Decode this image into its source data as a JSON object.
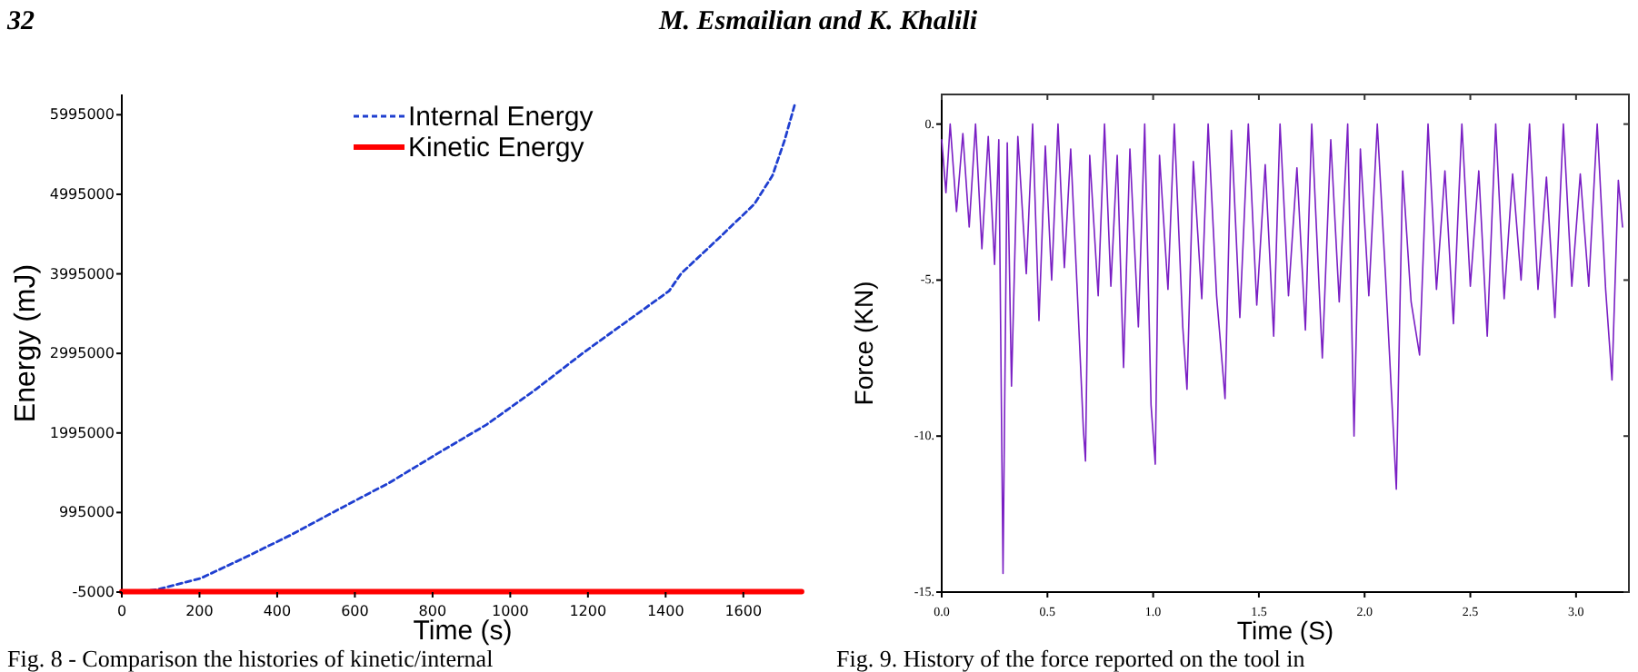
{
  "chart_data": [
    {
      "type": "line",
      "xlabel": "Time (s)",
      "ylabel": "Energy (mJ)",
      "annotations": [
        "32",
        "M. Esmailian and K. Khalili",
        "Fig. 8 - Comparison the histories of kinetic/internal"
      ],
      "xlim": [
        0,
        1755
      ],
      "xticks": [
        0,
        200,
        400,
        600,
        800,
        1000,
        1200,
        1400,
        1600
      ],
      "ylim": [
        -5000,
        6250000
      ],
      "yticks": [
        -5000,
        995000,
        1995000,
        2995000,
        3995000,
        4995000,
        5995000
      ],
      "legend": "top",
      "grid": false,
      "series": [
        {
          "name": "Internal Energy",
          "color": "#1f3fd0",
          "line_style": "dashed",
          "x": [
            50,
            94,
            204,
            313,
            438,
            564,
            689,
            814,
            939,
            1065,
            1190,
            1315,
            1409,
            1440,
            1534,
            1628,
            1675,
            1706,
            1734
          ],
          "values": [
            0,
            30000,
            170000,
            420000,
            720000,
            1050000,
            1370000,
            1740000,
            2100000,
            2540000,
            3010000,
            3450000,
            3780000,
            4000000,
            4430000,
            4870000,
            5230000,
            5670000,
            6150000
          ]
        },
        {
          "name": "Kinetic Energy",
          "color": "#ff0000",
          "line_style": "solid",
          "x": [
            0,
            1750
          ],
          "values": [
            0,
            0
          ]
        }
      ]
    },
    {
      "type": "line",
      "xlabel": "Time (S)",
      "ylabel": "Force (KN)",
      "annotations": [
        "Fig. 9. History of the force reported on the tool in"
      ],
      "xlim": [
        0,
        3.25
      ],
      "xticks": [
        {
          "value": 0,
          "label": "0.0"
        },
        {
          "value": 0.5,
          "label": "0.5"
        },
        {
          "value": 1,
          "label": "1.0"
        },
        {
          "value": 1.5,
          "label": "1.5"
        },
        {
          "value": 2,
          "label": "2.0"
        },
        {
          "value": 2.5,
          "label": "2.5"
        },
        {
          "value": 3,
          "label": "3.0"
        }
      ],
      "ylim": [
        -15,
        0.95
      ],
      "yticks": [
        {
          "value": 0,
          "label": "0."
        },
        {
          "value": -5,
          "label": "-5."
        },
        {
          "value": -10,
          "label": "-10."
        },
        {
          "value": -15,
          "label": "-15."
        }
      ],
      "legend": false,
      "grid": false,
      "series": [
        {
          "color": "#7a1fc4",
          "line_style": "solid",
          "x": [
            0,
            0.02,
            0.04,
            0.07,
            0.1,
            0.13,
            0.16,
            0.19,
            0.22,
            0.25,
            0.27,
            0.29,
            0.31,
            0.33,
            0.36,
            0.4,
            0.43,
            0.46,
            0.49,
            0.52,
            0.55,
            0.58,
            0.61,
            0.64,
            0.67,
            0.68,
            0.7,
            0.74,
            0.77,
            0.8,
            0.83,
            0.86,
            0.89,
            0.93,
            0.96,
            0.99,
            1.01,
            1.03,
            1.07,
            1.1,
            1.14,
            1.16,
            1.19,
            1.23,
            1.26,
            1.3,
            1.34,
            1.37,
            1.41,
            1.45,
            1.49,
            1.53,
            1.57,
            1.6,
            1.64,
            1.68,
            1.72,
            1.75,
            1.8,
            1.84,
            1.88,
            1.92,
            1.95,
            1.98,
            2.02,
            2.06,
            2.1,
            2.15,
            2.18,
            2.22,
            2.26,
            2.3,
            2.34,
            2.38,
            2.42,
            2.46,
            2.5,
            2.54,
            2.58,
            2.62,
            2.66,
            2.7,
            2.74,
            2.78,
            2.82,
            2.86,
            2.9,
            2.94,
            2.98,
            3.02,
            3.06,
            3.1,
            3.14,
            3.17,
            3.2,
            3.22
          ],
          "values": [
            -0.5,
            -2.2,
            0,
            -2.8,
            -0.3,
            -3.3,
            0,
            -4,
            -0.4,
            -4.5,
            -0.5,
            -14.4,
            -0.6,
            -8.4,
            -0.4,
            -4.8,
            0,
            -6.3,
            -0.7,
            -5,
            0,
            -4.6,
            -0.8,
            -5.2,
            -9.8,
            -10.8,
            -1,
            -5.5,
            0,
            -5.2,
            -1,
            -7.8,
            -0.8,
            -6.5,
            0,
            -9,
            -10.9,
            -1,
            -5.3,
            0,
            -6.5,
            -8.5,
            -1.2,
            -5.6,
            0,
            -5.5,
            -8.8,
            -0.2,
            -6.2,
            0,
            -5.8,
            -1.3,
            -6.8,
            0,
            -5.5,
            -1.4,
            -6.6,
            0,
            -7.5,
            -0.5,
            -5.7,
            0,
            -10,
            -0.8,
            -5.5,
            0,
            -5,
            -11.7,
            -1.5,
            -5.7,
            -7.4,
            0,
            -5.3,
            -1.5,
            -6.4,
            0,
            -5.2,
            -1.5,
            -6.8,
            0,
            -5.6,
            -1.6,
            -5,
            0,
            -5.3,
            -1.7,
            -6.2,
            0,
            -5.2,
            -1.6,
            -5.2,
            0,
            -5.3,
            -8.2,
            -1.8,
            -3.3
          ]
        }
      ]
    }
  ]
}
